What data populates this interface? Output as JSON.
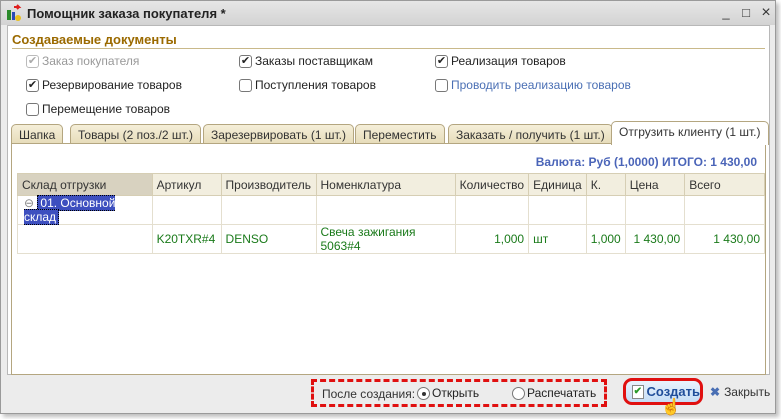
{
  "window": {
    "title": "Помощник заказа покупателя *",
    "minimize": "_",
    "maximize": "□",
    "close": "×"
  },
  "section_title": "Создаваемые документы",
  "checkboxes": [
    {
      "label": "Заказ покупателя",
      "checked": true,
      "disabled": true
    },
    {
      "label": "Заказы поставщикам",
      "checked": true
    },
    {
      "label": "Реализация товаров",
      "checked": true
    },
    {
      "label": "Резервирование товаров",
      "checked": true
    },
    {
      "label": "Поступления товаров",
      "checked": false
    },
    {
      "label": "Проводить реализацию товаров",
      "checked": false
    },
    {
      "label": "Перемещение товаров",
      "checked": false
    }
  ],
  "tabs": [
    "Шапка",
    "Товары (2 поз./2 шт.)",
    "Зарезервировать (1 шт.)",
    "Переместить",
    "Заказать / получить (1 шт.)",
    "Отгрузить клиенту (1 шт.)"
  ],
  "active_tab": 5,
  "total": "Валюта: Руб (1,0000) ИТОГО: 1 430,00",
  "table": {
    "headers": [
      "Склад отгрузки",
      "Артикул",
      "Производитель",
      "Номенклатура",
      "Количество",
      "Единица",
      "К.",
      "Цена",
      "Всего"
    ],
    "group": "01. Основной склад",
    "rows": [
      [
        "",
        "K20TXR#4",
        "DENSO",
        "Свеча зажигания 5063#4",
        "1,000",
        "шт",
        "1,000",
        "1 430,00",
        "1 430,00"
      ]
    ]
  },
  "footer": {
    "after_label": "После создания:",
    "open": "Открыть",
    "print": "Распечатать",
    "selected": "open",
    "create": "Создать",
    "close": "Закрыть"
  }
}
